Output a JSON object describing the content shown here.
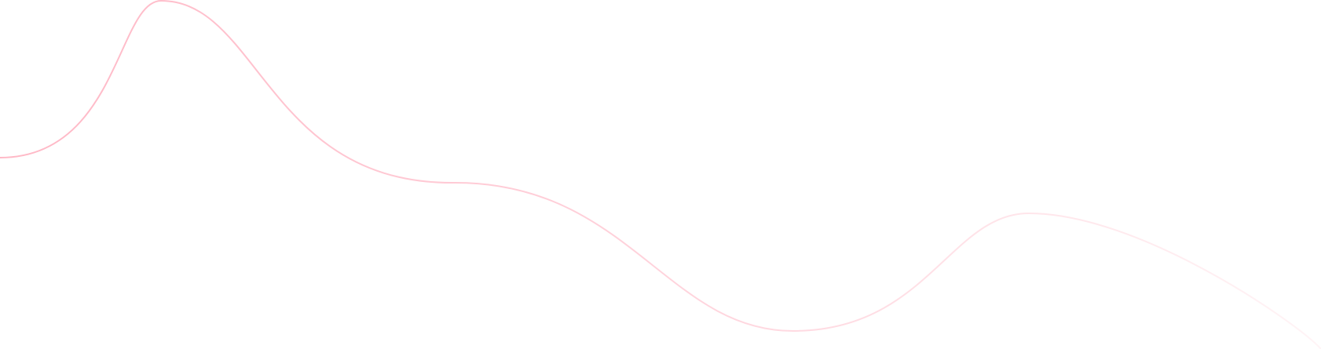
{
  "decoration": {
    "type": "wave-line",
    "colors": {
      "start": "#ffb8c6",
      "middle": "#ffd3dc",
      "end": "#fff4f6"
    }
  }
}
